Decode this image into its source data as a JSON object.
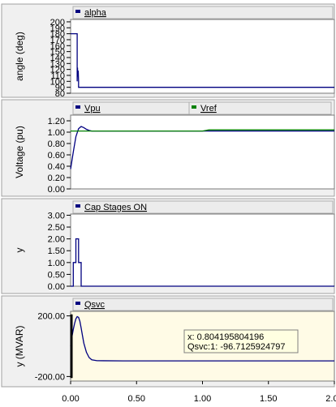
{
  "chart_data": [
    {
      "type": "line",
      "ylabel": "angle (deg)",
      "yticks": [
        "80",
        "90",
        "100",
        "110",
        "120",
        "130",
        "140",
        "150",
        "160",
        "170",
        "180",
        "190",
        "200"
      ],
      "ylim": [
        80,
        204
      ],
      "xlim": [
        0,
        2.0
      ],
      "grid": false,
      "legend_placement": "top-left",
      "series": [
        {
          "name": "alpha",
          "color": "#000080",
          "x": [
            0,
            0.05,
            0.05,
            0.052,
            0.055,
            0.058,
            0.06,
            0.06,
            2.0
          ],
          "y": [
            180,
            180,
            100,
            123,
            108,
            118,
            100,
            90,
            90
          ]
        }
      ]
    },
    {
      "type": "line",
      "ylabel": "Voltage (pu)",
      "yticks": [
        "0.00",
        "0.20",
        "0.40",
        "0.60",
        "0.80",
        "1.00",
        "1.20"
      ],
      "ylim": [
        0,
        1.3
      ],
      "xlim": [
        0,
        2.0
      ],
      "grid": false,
      "legend_placement": "top",
      "series": [
        {
          "name": "Vpu",
          "color": "#000080",
          "x": [
            0,
            0.02,
            0.04,
            0.06,
            0.08,
            0.1,
            0.12,
            0.14,
            0.16,
            0.2,
            0.3,
            2.0
          ],
          "y": [
            0.35,
            0.65,
            0.92,
            1.06,
            1.1,
            1.08,
            1.05,
            1.03,
            1.02,
            1.02,
            1.02,
            1.02
          ]
        },
        {
          "name": "Vref",
          "color": "#008000",
          "x": [
            0,
            1.0,
            1.05,
            2.0
          ],
          "y": [
            1.02,
            1.02,
            1.04,
            1.04
          ]
        }
      ]
    },
    {
      "type": "line",
      "ylabel": "y",
      "yticks": [
        "0.00",
        "0.50",
        "1.00",
        "1.50",
        "2.00",
        "2.50",
        "3.00"
      ],
      "ylim": [
        0,
        3.05
      ],
      "xlim": [
        0,
        2.0
      ],
      "grid": false,
      "legend_placement": "top-left",
      "series": [
        {
          "name": "Cap Stages ON",
          "color": "#000080",
          "x": [
            0,
            0.02,
            0.02,
            0.04,
            0.04,
            0.06,
            0.06,
            0.08,
            0.08,
            2.0
          ],
          "y": [
            0,
            0,
            1,
            1,
            2,
            2,
            1,
            1,
            0,
            0
          ]
        }
      ]
    },
    {
      "type": "line",
      "ylabel": "y (MVAR)",
      "yticks": [
        "-200.00",
        "200.00"
      ],
      "ylim": [
        -230,
        230
      ],
      "xlim": [
        0,
        2.0
      ],
      "xticks": [
        "0.00",
        "0.50",
        "1.00",
        "1.50",
        "2.00"
      ],
      "grid": false,
      "legend_placement": "top-left",
      "background": "#fffbe6",
      "series": [
        {
          "name": "Qsvc",
          "color": "#000080",
          "x": [
            0,
            0.01,
            0.02,
            0.03,
            0.04,
            0.05,
            0.06,
            0.07,
            0.08,
            0.09,
            0.1,
            0.12,
            0.14,
            0.16,
            0.2,
            0.4,
            2.0
          ],
          "y": [
            0,
            60,
            110,
            150,
            180,
            195,
            190,
            165,
            120,
            70,
            20,
            -40,
            -75,
            -90,
            -96,
            -96.7,
            -96.7
          ]
        }
      ],
      "spike": {
        "x": 0.0,
        "y_from": -210,
        "y_to": 210
      },
      "tooltip": {
        "x_line": "x: 0.804195804196",
        "value_line": "Qsvc:1: -96.7125924797"
      }
    }
  ]
}
